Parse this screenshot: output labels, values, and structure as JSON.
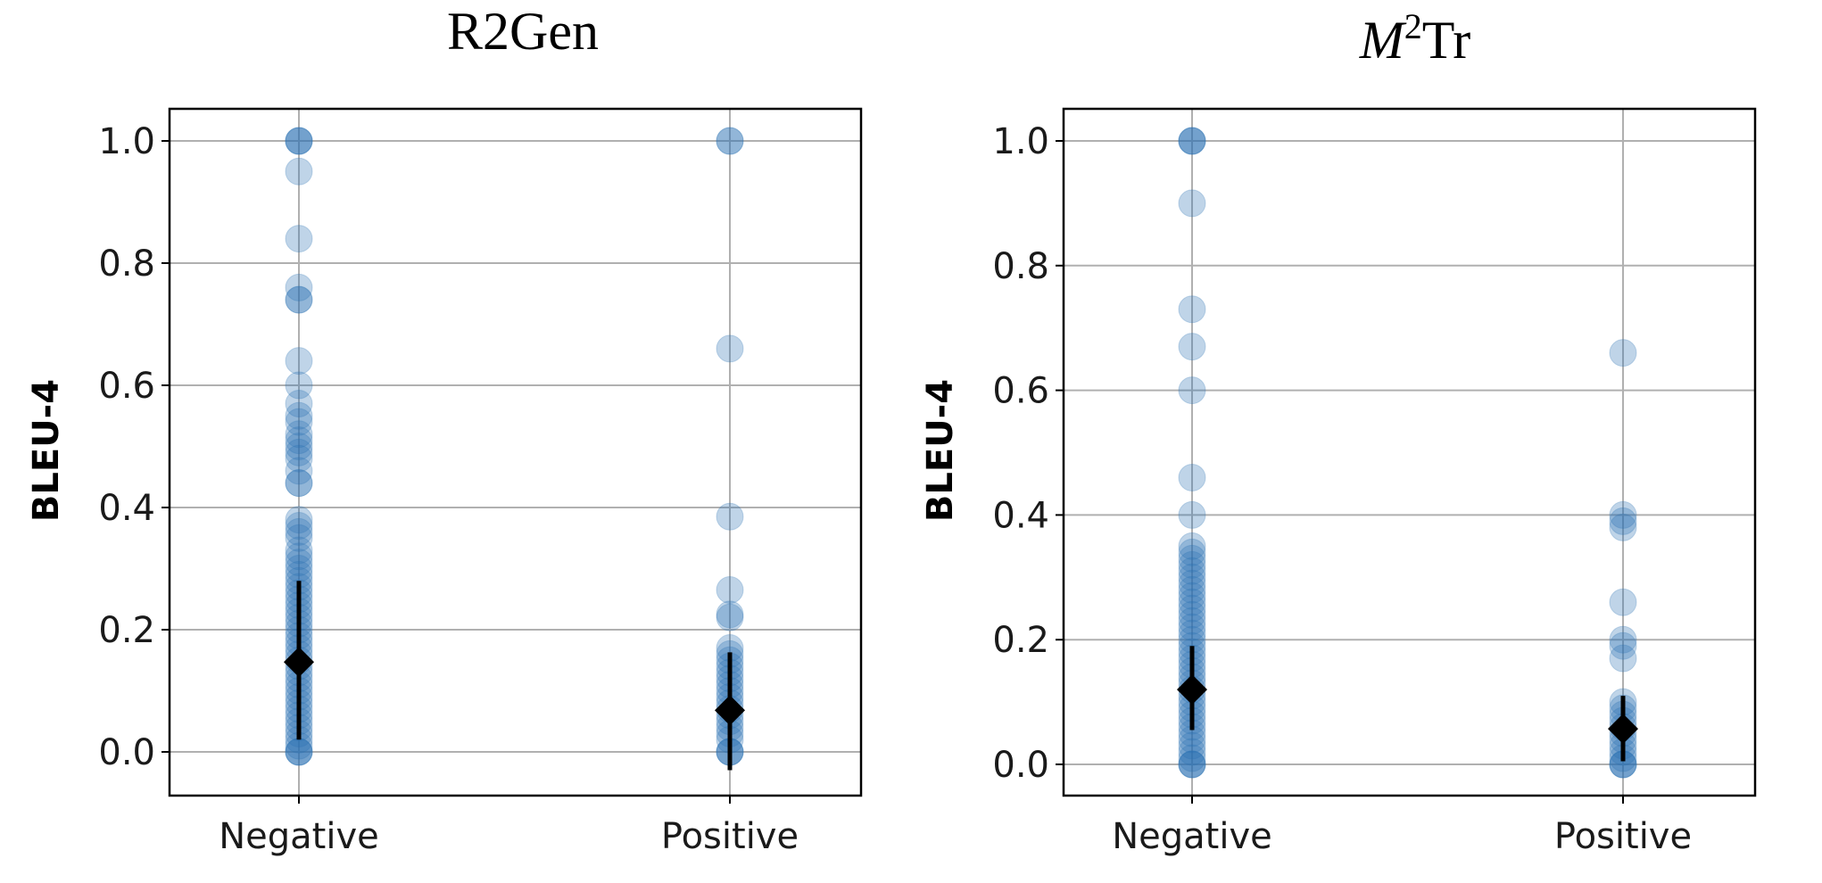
{
  "chart_data": [
    {
      "type": "scatter",
      "title": "R2Gen",
      "title_sup": "",
      "xlabel": "",
      "ylabel": "BLEU-4",
      "categories": [
        "Negative",
        "Positive"
      ],
      "ylim": [
        -0.07,
        1.05
      ],
      "yticks": [
        0.0,
        0.2,
        0.4,
        0.6,
        0.8,
        1.0
      ],
      "ytick_labels": [
        "0.0",
        "0.2",
        "0.4",
        "0.6",
        "0.8",
        "1.0"
      ],
      "grid": true,
      "series": [
        {
          "name": "Negative",
          "points": [
            1.0,
            1.0,
            1.0,
            0.95,
            0.84,
            0.76,
            0.74,
            0.74,
            0.64,
            0.6,
            0.57,
            0.55,
            0.54,
            0.52,
            0.51,
            0.5,
            0.49,
            0.48,
            0.46,
            0.44,
            0.44,
            0.38,
            0.37,
            0.36,
            0.35,
            0.33,
            0.32,
            0.31,
            0.3,
            0.29,
            0.28,
            0.27,
            0.26,
            0.25,
            0.24,
            0.23,
            0.22,
            0.21,
            0.2,
            0.19,
            0.18,
            0.17,
            0.16,
            0.15,
            0.14,
            0.13,
            0.12,
            0.11,
            0.1,
            0.09,
            0.08,
            0.07,
            0.06,
            0.05,
            0.04,
            0.03,
            0.02,
            0.01,
            0.0,
            0.0,
            0.0
          ],
          "mean": 0.147,
          "error_low": 0.02,
          "error_high": 0.28
        },
        {
          "name": "Positive",
          "points": [
            1.0,
            1.0,
            0.66,
            0.385,
            0.265,
            0.225,
            0.22,
            0.17,
            0.16,
            0.15,
            0.14,
            0.13,
            0.12,
            0.11,
            0.1,
            0.09,
            0.08,
            0.07,
            0.06,
            0.05,
            0.04,
            0.03,
            0.02,
            0.0,
            0.0,
            0.0
          ],
          "mean": 0.068,
          "error_low": -0.03,
          "error_high": 0.163
        }
      ]
    },
    {
      "type": "scatter",
      "title": "M",
      "title_sup": "2",
      "title_suffix": "Tr",
      "xlabel": "",
      "ylabel": "BLEU-4",
      "categories": [
        "Negative",
        "Positive"
      ],
      "ylim": [
        -0.05,
        1.05
      ],
      "yticks": [
        0.0,
        0.2,
        0.4,
        0.6,
        0.8,
        1.0
      ],
      "ytick_labels": [
        "0.0",
        "0.2",
        "0.4",
        "0.6",
        "0.8",
        "1.0"
      ],
      "grid": true,
      "series": [
        {
          "name": "Negative",
          "points": [
            1.0,
            1.0,
            1.0,
            0.9,
            0.73,
            0.67,
            0.6,
            0.46,
            0.4,
            0.35,
            0.34,
            0.33,
            0.32,
            0.31,
            0.3,
            0.29,
            0.28,
            0.27,
            0.26,
            0.25,
            0.24,
            0.23,
            0.22,
            0.21,
            0.2,
            0.19,
            0.18,
            0.17,
            0.16,
            0.15,
            0.14,
            0.13,
            0.12,
            0.11,
            0.1,
            0.09,
            0.08,
            0.07,
            0.06,
            0.05,
            0.04,
            0.03,
            0.02,
            0.01,
            0.0,
            0.0,
            0.0
          ],
          "mean": 0.12,
          "error_low": 0.055,
          "error_high": 0.19
        },
        {
          "name": "Positive",
          "points": [
            0.66,
            0.4,
            0.39,
            0.38,
            0.26,
            0.2,
            0.19,
            0.17,
            0.1,
            0.09,
            0.08,
            0.07,
            0.06,
            0.05,
            0.04,
            0.03,
            0.02,
            0.01,
            0.0,
            0.0,
            0.0
          ],
          "mean": 0.057,
          "error_low": 0.005,
          "error_high": 0.11
        }
      ]
    }
  ]
}
